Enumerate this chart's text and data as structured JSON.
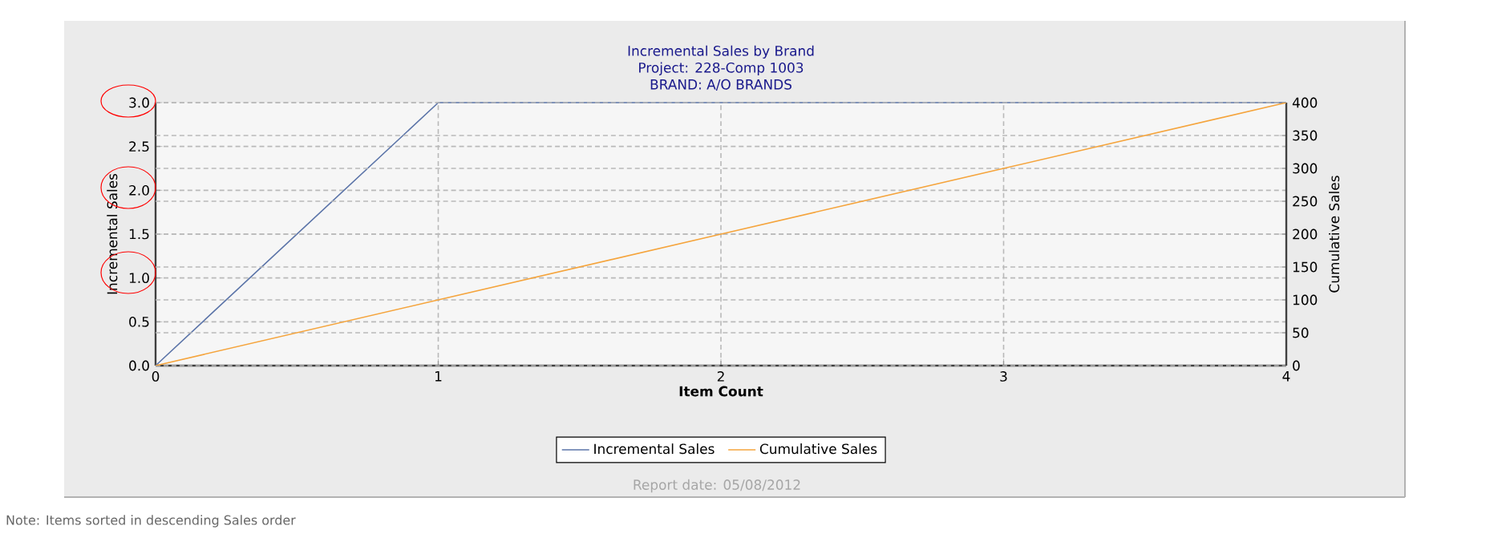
{
  "chart_data": {
    "type": "line",
    "title": "Incremental Sales by Brand",
    "subtitle": "Project: 228-Comp 1003",
    "annotations": [
      "BRAND: A/O BRANDS",
      "Report date: 05/08/2012",
      "Note: Items sorted in descending Sales order"
    ],
    "xlabel": "Item Count",
    "ylabel": "Incremental Sales",
    "y2label": "Cumulative Sales",
    "x": [
      0,
      1,
      2,
      3,
      4
    ],
    "series": [
      {
        "name": "Incremental Sales",
        "color": "#5b74a8",
        "values": [
          0,
          3,
          3,
          3,
          3
        ]
      },
      {
        "name": "Cumulative Sales",
        "color": "#f5a43c",
        "values": [
          0,
          100,
          200,
          300,
          400
        ],
        "axis": "y2"
      }
    ],
    "xlim": [
      0,
      4
    ],
    "xticks": [
      0,
      1,
      2,
      3,
      4
    ],
    "ylim": [
      0,
      3
    ],
    "yticks": [
      {
        "value": 0,
        "label": "0.0"
      },
      {
        "value": 0.5,
        "label": "0.5"
      },
      {
        "value": 1,
        "label": "1.0"
      },
      {
        "value": 1.5,
        "label": "1.5"
      },
      {
        "value": 2,
        "label": "2.0"
      },
      {
        "value": 2.5,
        "label": "2.5"
      },
      {
        "value": 3,
        "label": "3.0"
      }
    ],
    "y2lim": [
      0,
      400
    ],
    "y2ticks": [
      0,
      50,
      100,
      150,
      200,
      250,
      300,
      350,
      400
    ],
    "grid": true,
    "legend": "bottom",
    "marker": "none",
    "line_style": "solid"
  }
}
